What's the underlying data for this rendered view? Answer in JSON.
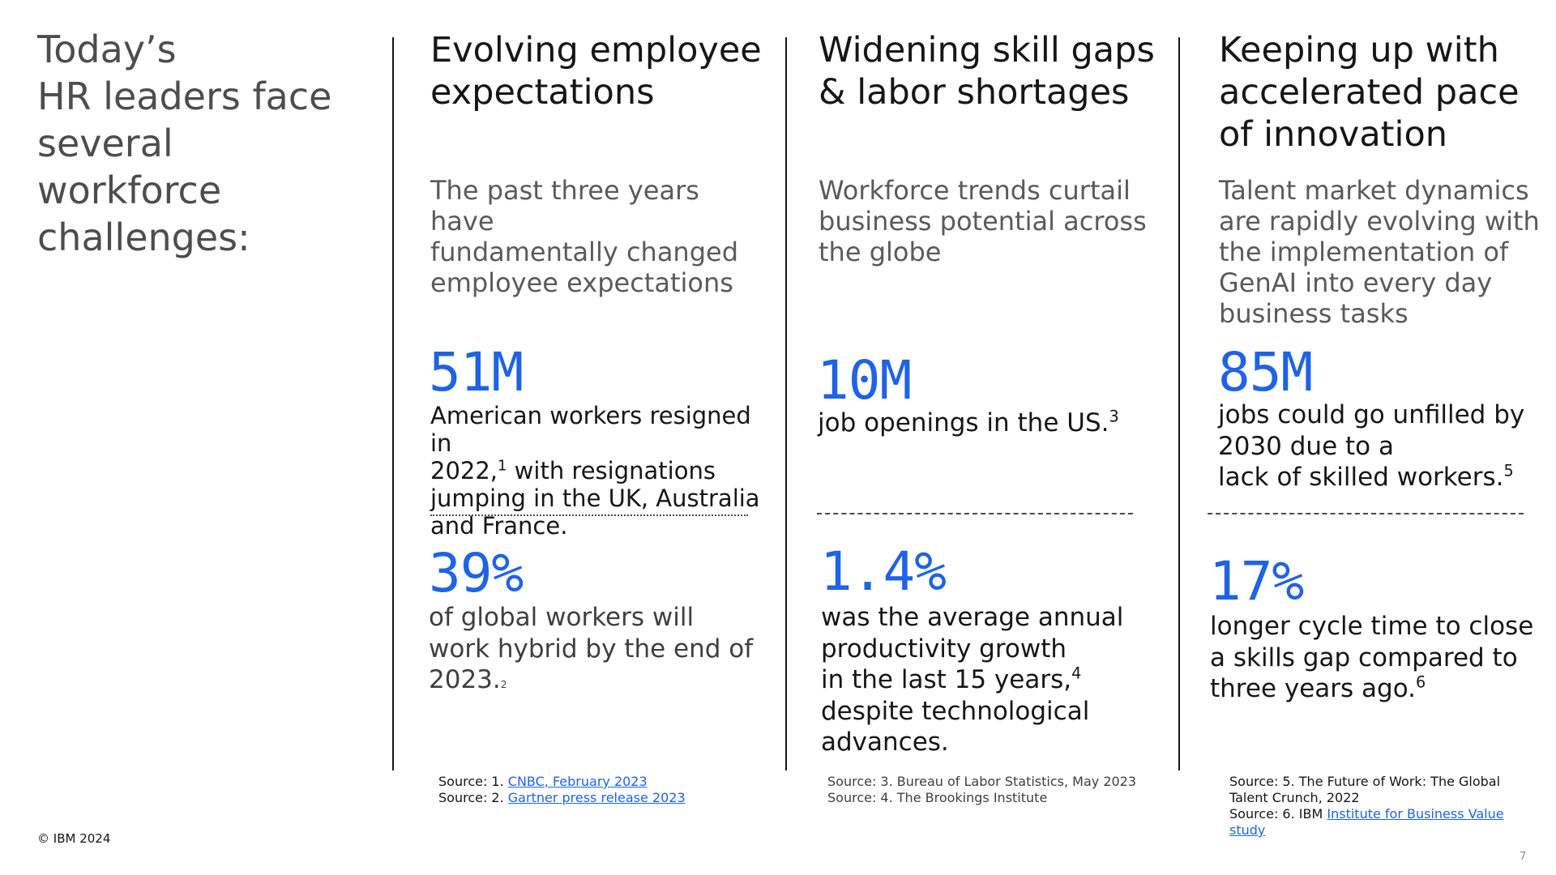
{
  "title": "Today’s\nHR leaders face\nseveral\nworkforce\nchallenges:",
  "columns": [
    {
      "heading": "Evolving employee\nexpectations",
      "subheading": "The past three years have\nfundamentally changed\nemployee expectations",
      "stat1": {
        "value": "51M",
        "text_a": "American workers resigned in\n2022,",
        "sup": "1",
        "text_b": " with resignations\njumping in the UK, Australia\nand France."
      },
      "stat2": {
        "value": "39%",
        "text_a": "of global workers will\nwork hybrid by the end of\n2023.",
        "sup": "2"
      },
      "sources": [
        {
          "prefix": "Source: 1. ",
          "link": "CNBC, February 2023"
        },
        {
          "prefix": "Source: 2. ",
          "link": "Gartner press release 2023"
        }
      ]
    },
    {
      "heading": "Widening skill gaps\n& labor shortages",
      "subheading": "Workforce trends curtail\nbusiness potential across\nthe globe",
      "stat1": {
        "value": "10M",
        "text_a": "job openings in the US.",
        "sup": "3"
      },
      "stat2": {
        "value": "1.4%",
        "text_a": "was the average annual\nproductivity growth\nin the last 15 years,",
        "sup": "4",
        "text_b": "\ndespite technological\nadvances."
      },
      "sources": [
        {
          "text": "Source: 3. Bureau of Labor Statistics, May 2023"
        },
        {
          "text": "Source: 4. The Brookings Institute"
        }
      ]
    },
    {
      "heading": "Keeping up with\naccelerated pace\nof innovation",
      "subheading": "Talent market dynamics\nare rapidly evolving with\nthe implementation of\nGenAI into every day\nbusiness tasks",
      "stat1": {
        "value": "85M",
        "text_a": "jobs could go unfilled by\n2030 due to a\nlack of  skilled workers.",
        "sup": "5"
      },
      "stat2": {
        "value": "17%",
        "text_a": "longer cycle time to close\na skills gap compared to\nthree years ago.",
        "sup": "6"
      },
      "sources": [
        {
          "text": "Source: 5. The Future of Work: The Global Talent Crunch, 2022"
        },
        {
          "prefix": "Source: 6. IBM ",
          "link": "Institute for Business Value study"
        }
      ]
    }
  ],
  "footer": {
    "copyright": "© IBM 2024",
    "page_number": "7"
  },
  "colors": {
    "accent": "#1f63e6",
    "heading": "#161616",
    "subheading": "#5a5a5a",
    "title": "#4d4d4d"
  }
}
